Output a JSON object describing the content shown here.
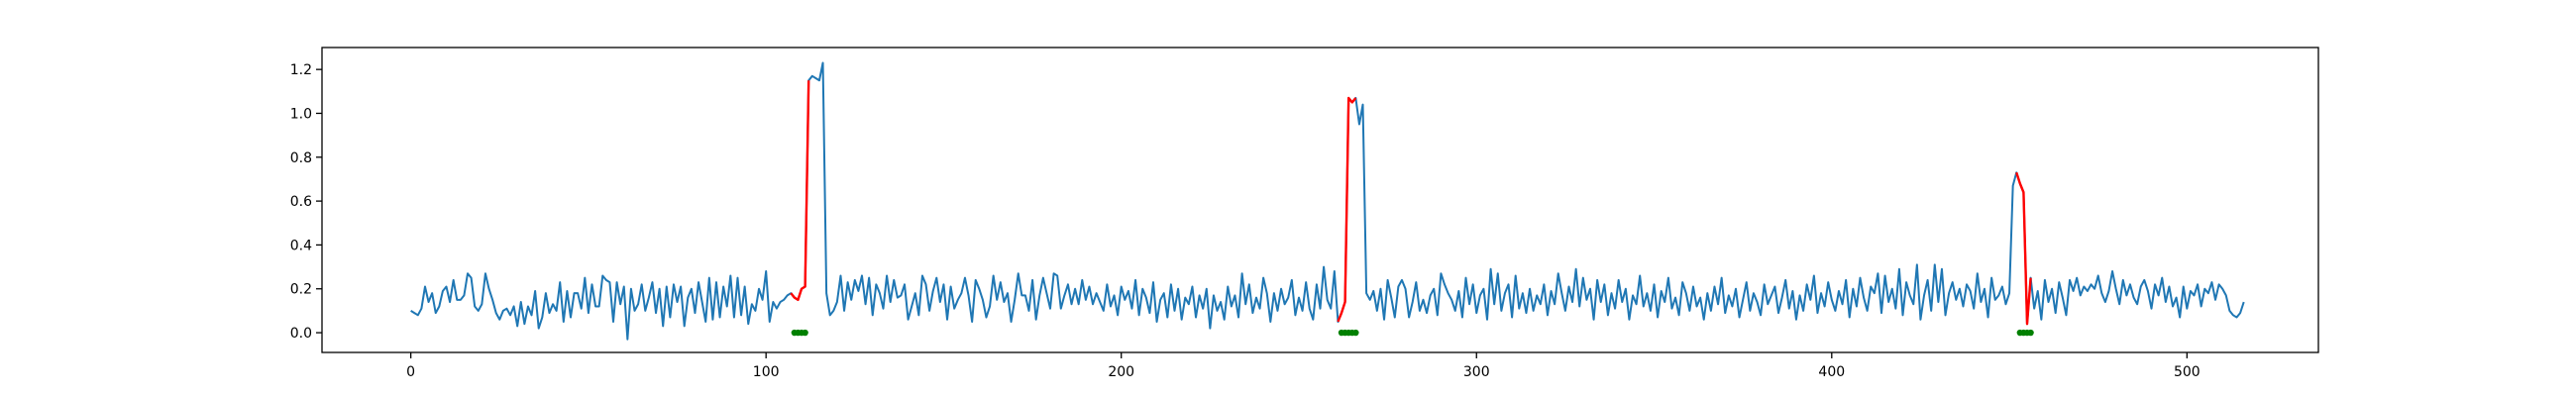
{
  "chart_data": {
    "type": "line",
    "title": "",
    "xlabel": "",
    "ylabel": "",
    "xlim": [
      -25,
      537
    ],
    "ylim": [
      -0.09,
      1.3
    ],
    "grid": false,
    "legend": "none",
    "x_ticks": [
      0,
      100,
      200,
      300,
      400,
      500
    ],
    "y_ticks": [
      0.0,
      0.2,
      0.4,
      0.6,
      0.8,
      1.0,
      1.2
    ],
    "x_tick_labels": [
      "0",
      "100",
      "200",
      "300",
      "400",
      "500"
    ],
    "y_tick_labels": [
      "0.0",
      "0.2",
      "0.4",
      "0.6",
      "0.8",
      "1.0",
      "1.2"
    ],
    "colors": {
      "series": "#1f77b4",
      "anomaly": "#ff0000",
      "marker": "#008000"
    },
    "series": [
      {
        "values": [
          0.1,
          0.09,
          0.08,
          0.11,
          0.21,
          0.14,
          0.18,
          0.09,
          0.12,
          0.19,
          0.21,
          0.14,
          0.24,
          0.15,
          0.15,
          0.17,
          0.27,
          0.25,
          0.12,
          0.1,
          0.13,
          0.27,
          0.2,
          0.15,
          0.09,
          0.06,
          0.1,
          0.11,
          0.08,
          0.12,
          0.03,
          0.14,
          0.04,
          0.12,
          0.08,
          0.19,
          0.02,
          0.07,
          0.18,
          0.09,
          0.13,
          0.1,
          0.23,
          0.05,
          0.19,
          0.07,
          0.18,
          0.18,
          0.11,
          0.25,
          0.09,
          0.22,
          0.12,
          0.12,
          0.26,
          0.24,
          0.23,
          0.05,
          0.23,
          0.13,
          0.21,
          -0.03,
          0.2,
          0.1,
          0.13,
          0.22,
          0.1,
          0.16,
          0.23,
          0.09,
          0.2,
          0.03,
          0.21,
          0.07,
          0.22,
          0.14,
          0.21,
          0.03,
          0.16,
          0.2,
          0.09,
          0.23,
          0.14,
          0.05,
          0.25,
          0.06,
          0.23,
          0.07,
          0.21,
          0.12,
          0.26,
          0.07,
          0.25,
          0.08,
          0.21,
          0.04,
          0.13,
          0.1,
          0.2,
          0.15,
          0.28,
          0.05,
          0.14,
          0.11,
          0.14,
          0.15,
          0.17,
          0.18,
          0.16,
          0.15,
          0.2,
          0.21,
          1.15,
          1.17,
          1.16,
          1.15,
          1.23,
          0.18,
          0.08,
          0.1,
          0.14,
          0.26,
          0.1,
          0.23,
          0.15,
          0.24,
          0.19,
          0.26,
          0.13,
          0.25,
          0.08,
          0.22,
          0.18,
          0.11,
          0.26,
          0.14,
          0.24,
          0.16,
          0.17,
          0.22,
          0.06,
          0.12,
          0.18,
          0.08,
          0.26,
          0.22,
          0.1,
          0.19,
          0.25,
          0.14,
          0.22,
          0.06,
          0.21,
          0.11,
          0.15,
          0.18,
          0.25,
          0.17,
          0.05,
          0.24,
          0.2,
          0.15,
          0.07,
          0.12,
          0.26,
          0.15,
          0.23,
          0.14,
          0.18,
          0.05,
          0.15,
          0.27,
          0.17,
          0.17,
          0.1,
          0.24,
          0.06,
          0.17,
          0.25,
          0.18,
          0.11,
          0.27,
          0.26,
          0.11,
          0.17,
          0.22,
          0.13,
          0.2,
          0.13,
          0.24,
          0.15,
          0.21,
          0.13,
          0.18,
          0.14,
          0.1,
          0.22,
          0.12,
          0.17,
          0.08,
          0.21,
          0.15,
          0.19,
          0.11,
          0.24,
          0.08,
          0.2,
          0.16,
          0.09,
          0.23,
          0.05,
          0.15,
          0.18,
          0.07,
          0.22,
          0.1,
          0.2,
          0.06,
          0.16,
          0.13,
          0.21,
          0.07,
          0.17,
          0.11,
          0.2,
          0.02,
          0.17,
          0.1,
          0.14,
          0.06,
          0.21,
          0.12,
          0.17,
          0.07,
          0.27,
          0.13,
          0.22,
          0.09,
          0.16,
          0.11,
          0.25,
          0.18,
          0.05,
          0.18,
          0.1,
          0.2,
          0.13,
          0.16,
          0.24,
          0.08,
          0.16,
          0.1,
          0.23,
          0.11,
          0.06,
          0.22,
          0.11,
          0.3,
          0.15,
          0.11,
          0.28,
          0.05,
          0.09,
          0.14,
          1.07,
          1.05,
          1.07,
          0.95,
          1.04,
          0.18,
          0.15,
          0.19,
          0.1,
          0.2,
          0.06,
          0.24,
          0.16,
          0.07,
          0.21,
          0.24,
          0.2,
          0.07,
          0.14,
          0.23,
          0.1,
          0.15,
          0.09,
          0.17,
          0.2,
          0.08,
          0.27,
          0.22,
          0.18,
          0.15,
          0.1,
          0.19,
          0.07,
          0.25,
          0.13,
          0.22,
          0.09,
          0.17,
          0.2,
          0.06,
          0.29,
          0.13,
          0.27,
          0.1,
          0.18,
          0.22,
          0.07,
          0.26,
          0.11,
          0.18,
          0.09,
          0.2,
          0.1,
          0.17,
          0.13,
          0.22,
          0.08,
          0.19,
          0.13,
          0.27,
          0.18,
          0.1,
          0.21,
          0.14,
          0.29,
          0.12,
          0.25,
          0.15,
          0.2,
          0.06,
          0.24,
          0.14,
          0.22,
          0.08,
          0.18,
          0.11,
          0.24,
          0.14,
          0.2,
          0.06,
          0.17,
          0.13,
          0.26,
          0.12,
          0.18,
          0.1,
          0.22,
          0.07,
          0.19,
          0.14,
          0.25,
          0.11,
          0.16,
          0.08,
          0.23,
          0.18,
          0.1,
          0.21,
          0.12,
          0.16,
          0.06,
          0.18,
          0.1,
          0.21,
          0.13,
          0.25,
          0.09,
          0.17,
          0.12,
          0.2,
          0.07,
          0.15,
          0.23,
          0.1,
          0.18,
          0.14,
          0.08,
          0.22,
          0.13,
          0.17,
          0.21,
          0.09,
          0.16,
          0.24,
          0.11,
          0.19,
          0.06,
          0.17,
          0.1,
          0.22,
          0.15,
          0.26,
          0.09,
          0.18,
          0.12,
          0.23,
          0.15,
          0.1,
          0.19,
          0.13,
          0.24,
          0.07,
          0.2,
          0.12,
          0.25,
          0.16,
          0.1,
          0.21,
          0.18,
          0.27,
          0.09,
          0.26,
          0.14,
          0.2,
          0.11,
          0.29,
          0.08,
          0.23,
          0.17,
          0.13,
          0.31,
          0.06,
          0.17,
          0.24,
          0.1,
          0.31,
          0.14,
          0.29,
          0.08,
          0.18,
          0.23,
          0.15,
          0.2,
          0.12,
          0.22,
          0.19,
          0.11,
          0.27,
          0.14,
          0.2,
          0.07,
          0.25,
          0.15,
          0.17,
          0.21,
          0.13,
          0.18,
          0.67,
          0.73,
          0.68,
          0.64,
          0.04,
          0.25,
          0.11,
          0.19,
          0.06,
          0.24,
          0.14,
          0.2,
          0.09,
          0.23,
          0.16,
          0.08,
          0.24,
          0.19,
          0.25,
          0.17,
          0.21,
          0.19,
          0.22,
          0.2,
          0.26,
          0.18,
          0.14,
          0.19,
          0.28,
          0.2,
          0.13,
          0.24,
          0.17,
          0.22,
          0.16,
          0.13,
          0.21,
          0.24,
          0.19,
          0.11,
          0.22,
          0.17,
          0.25,
          0.14,
          0.21,
          0.12,
          0.16,
          0.07,
          0.21,
          0.11,
          0.19,
          0.17,
          0.22,
          0.12,
          0.2,
          0.18,
          0.23,
          0.15,
          0.22,
          0.2,
          0.17,
          0.1,
          0.08,
          0.07,
          0.09,
          0.14
        ]
      }
    ],
    "anomaly_segments": [
      [
        107,
        112
      ],
      [
        261,
        266
      ],
      [
        452,
        456
      ]
    ],
    "markers": [
      {
        "x": [
          108,
          109,
          110,
          111
        ],
        "y": [
          0.0,
          0.0,
          0.0,
          0.0
        ]
      },
      {
        "x": [
          262,
          263,
          264,
          265,
          266
        ],
        "y": [
          0.0,
          0.0,
          0.0,
          0.0,
          0.0
        ]
      },
      {
        "x": [
          453,
          454,
          455,
          456
        ],
        "y": [
          0.0,
          0.0,
          0.0,
          0.0
        ]
      }
    ]
  }
}
